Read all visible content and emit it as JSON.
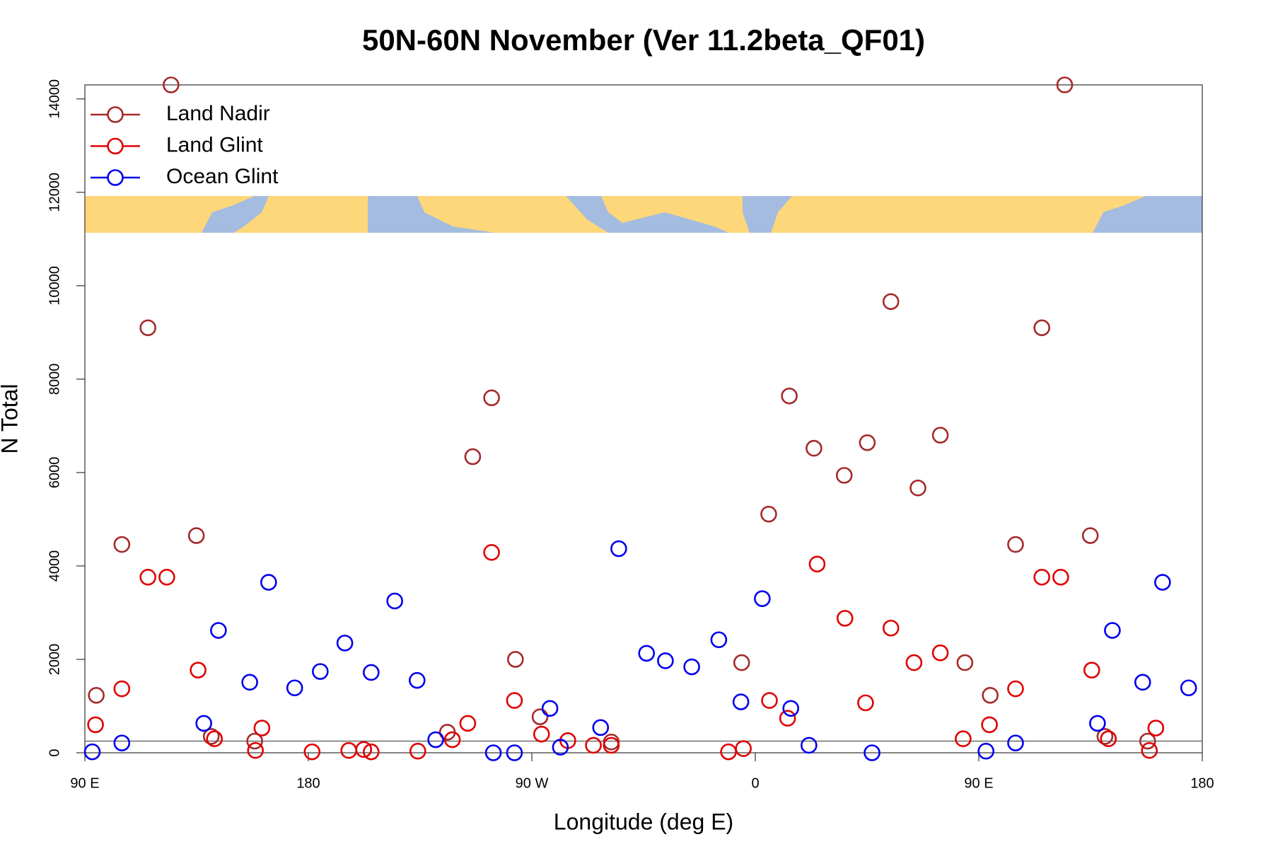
{
  "chart_data": {
    "type": "scatter",
    "title": "50N-60N November (Ver 11.2beta_QF01)",
    "x_label": "Longitude (deg E)",
    "y_label": "N Total",
    "xlim": [
      90,
      540
    ],
    "xticks": [
      {
        "value": 90,
        "label": "90 E"
      },
      {
        "value": 180,
        "label": "180"
      },
      {
        "value": 270,
        "label": "90 W"
      },
      {
        "value": 360,
        "label": "0"
      },
      {
        "value": 450,
        "label": "90 E"
      },
      {
        "value": 540,
        "label": "180"
      }
    ],
    "ylim": [
      0,
      14300
    ],
    "yticks": [
      0,
      2000,
      4000,
      6000,
      8000,
      10000,
      12000,
      14000
    ],
    "reference_line": 250,
    "legend": "top-left",
    "series": [
      {
        "name": "Land Nadir",
        "color": "#a52a2a",
        "x": [
          94.6,
          104.9,
          115.4,
          124.7,
          134.9,
          140.9,
          158.4,
          236.0,
          246.2,
          253.8,
          263.4,
          273.3,
          302.0,
          354.5,
          365.4,
          373.7,
          383.6,
          395.8,
          405.1,
          414.6,
          425.5,
          434.5,
          444.4,
          454.6,
          464.8,
          475.4,
          484.6,
          494.9,
          500.8,
          518.0
        ],
        "values": [
          1230,
          4460,
          9100,
          14300,
          4650,
          350,
          250,
          440,
          6340,
          7600,
          2000,
          770,
          230,
          1930,
          5110,
          7640,
          6520,
          5940,
          6640,
          9660,
          5670,
          6800,
          1930,
          1230,
          4460,
          9100,
          14300,
          4650,
          350,
          250
        ]
      },
      {
        "name": "Land Glint",
        "color": "#e00000",
        "x": [
          94.3,
          104.9,
          115.4,
          123.0,
          135.6,
          142.2,
          158.7,
          161.3,
          181.5,
          196.3,
          202.3,
          205.3,
          224.1,
          238.0,
          244.2,
          253.8,
          263.0,
          273.9,
          284.5,
          294.8,
          302.0,
          349.2,
          355.2,
          365.7,
          373.0,
          384.9,
          396.1,
          404.4,
          414.6,
          423.9,
          434.5,
          443.7,
          454.3,
          464.8,
          475.4,
          483.0,
          495.5,
          502.2,
          518.7,
          521.3
        ],
        "values": [
          600,
          1370,
          3760,
          3760,
          1770,
          300,
          50,
          530,
          20,
          50,
          70,
          20,
          35,
          280,
          630,
          4290,
          1120,
          400,
          260,
          160,
          160,
          20,
          90,
          1120,
          740,
          4040,
          2880,
          1070,
          2670,
          1930,
          2140,
          300,
          600,
          1370,
          3760,
          3760,
          1770,
          300,
          50,
          530
        ]
      },
      {
        "name": "Ocean Glint",
        "color": "#0000ee",
        "x": [
          93.0,
          104.9,
          137.9,
          143.8,
          156.4,
          164.0,
          174.5,
          184.8,
          194.7,
          205.3,
          214.8,
          223.8,
          231.3,
          254.5,
          263.0,
          277.3,
          281.5,
          297.7,
          305.0,
          316.2,
          323.8,
          334.4,
          345.3,
          354.2,
          362.8,
          374.3,
          381.6,
          407.0,
          452.9,
          464.8,
          497.8,
          503.8,
          516.0,
          524.0,
          534.5
        ],
        "values": [
          20,
          210,
          630,
          2620,
          1510,
          3650,
          1390,
          1740,
          2350,
          1720,
          3250,
          1550,
          280,
          0,
          0,
          950,
          120,
          540,
          4370,
          2130,
          1970,
          1840,
          2420,
          1090,
          3300,
          950,
          160,
          0,
          35,
          210,
          630,
          2620,
          1510,
          3650,
          1390
        ]
      }
    ]
  }
}
